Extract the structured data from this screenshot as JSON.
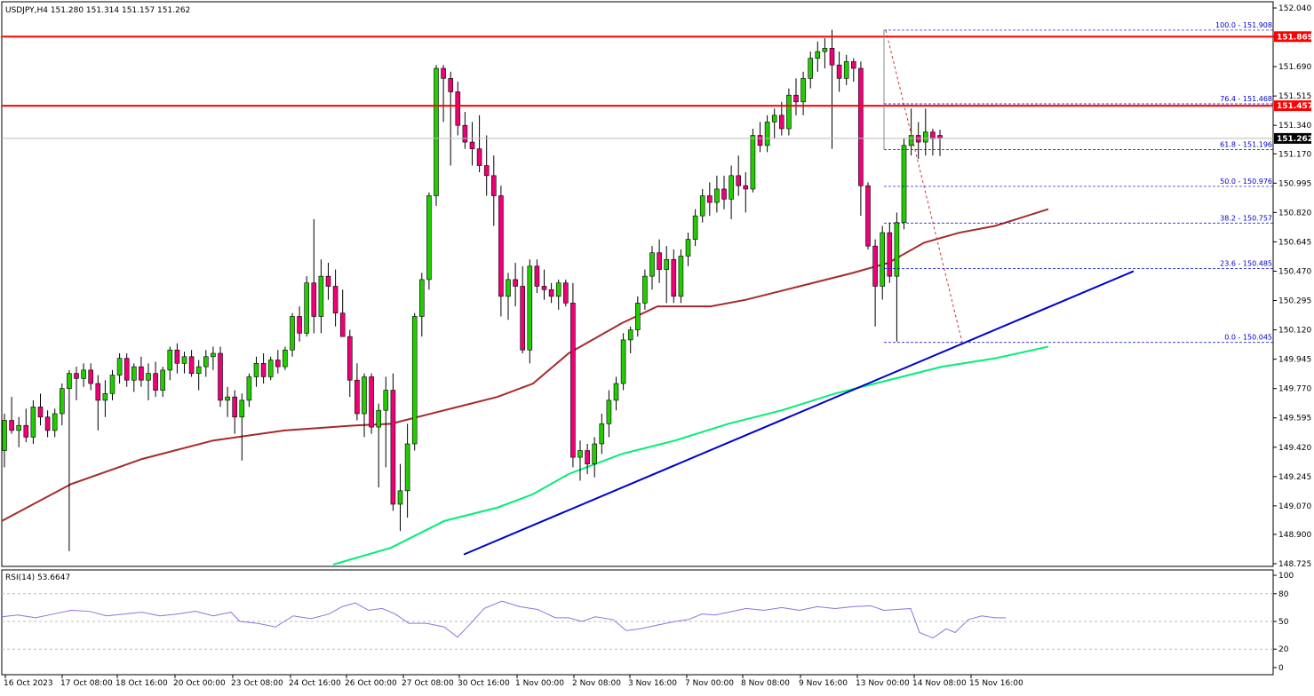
{
  "header": {
    "symbol_line": "USDJPY,H4  151.280 151.314 151.157 151.262",
    "rsi_label": "RSI(14) 53.6647"
  },
  "colors": {
    "bull": "#22cc00",
    "bear": "#ee0077",
    "resistance": "#ff0000",
    "trendline": "#0000cc",
    "ma_slow": "#a52a2a",
    "ma_fast": "#00ee77",
    "rsi": "#9370db"
  },
  "chart_data": {
    "type": "candlestick",
    "symbol": "USDJPY",
    "timeframe": "H4",
    "ohlc_last": {
      "open": 151.28,
      "high": 151.314,
      "low": 151.157,
      "close": 151.262
    },
    "ylim": [
      148.64,
      152.04
    ],
    "y_ticks": [
      "152.040",
      "151.869",
      "151.690",
      "151.515",
      "151.340",
      "151.170",
      "150.995",
      "150.820",
      "150.645",
      "150.470",
      "150.295",
      "150.120",
      "149.945",
      "149.770",
      "149.595",
      "149.420",
      "149.245",
      "149.070",
      "148.900",
      "148.725"
    ],
    "x_ticks": [
      "16 Oct 2023",
      "17 Oct 08:00",
      "18 Oct 16:00",
      "20 Oct 00:00",
      "23 Oct 08:00",
      "24 Oct 16:00",
      "26 Oct 00:00",
      "27 Oct 08:00",
      "30 Oct 16:00",
      "1 Nov 00:00",
      "2 Nov 08:00",
      "3 Nov 16:00",
      "7 Nov 00:00",
      "8 Nov 08:00",
      "9 Nov 16:00",
      "13 Nov 00:00",
      "14 Nov 08:00",
      "15 Nov 16:00"
    ],
    "price_labels": {
      "resistance_upper": "151.869",
      "resistance_lower": "151.457",
      "current": "151.262"
    },
    "horizontal_lines": [
      151.869,
      151.457
    ],
    "current_price": 151.262,
    "fibonacci": [
      {
        "label": "100.0 - 151.908",
        "price": 151.908
      },
      {
        "label": "76.4 - 151.468",
        "price": 151.468
      },
      {
        "label": "61.8 - 151.196",
        "price": 151.196
      },
      {
        "label": "50.0 - 150.976",
        "price": 150.976
      },
      {
        "label": "38.2 - 150.757",
        "price": 150.757
      },
      {
        "label": "23.6 - 150.485",
        "price": 150.485
      },
      {
        "label": "0.0 - 150.045",
        "price": 150.045
      }
    ],
    "trendline": {
      "from_price": 148.78,
      "to_price": 150.47
    },
    "rsi": {
      "label": "RSI(14) 53.6647",
      "value": 53.6647,
      "ylim": [
        0,
        100
      ],
      "y_ticks": [
        "100",
        "80",
        "50",
        "20",
        "0"
      ],
      "levels": [
        80,
        50,
        20
      ]
    }
  }
}
